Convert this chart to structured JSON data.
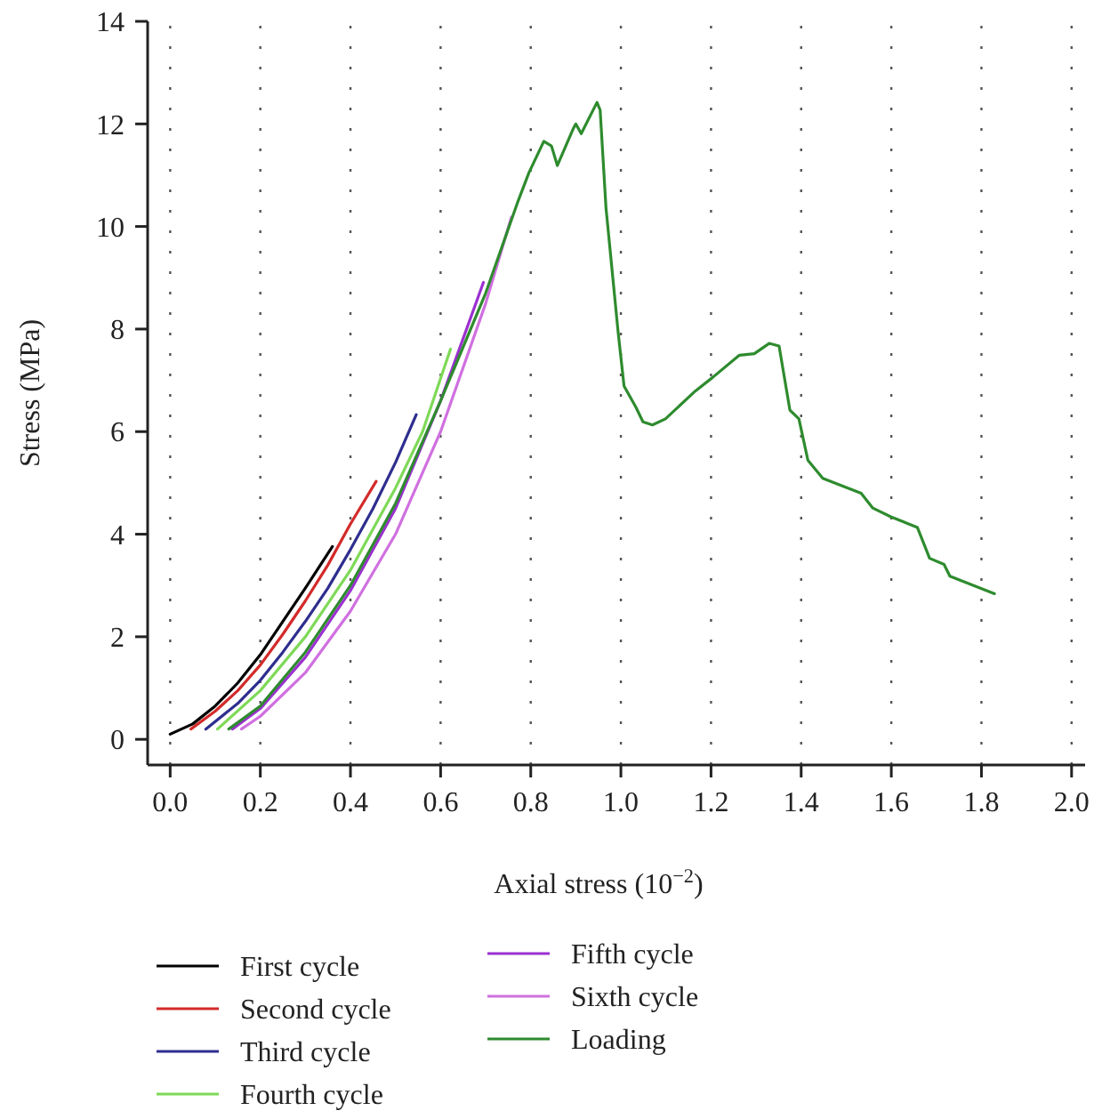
{
  "chart_data": {
    "type": "line",
    "xlabel": "Axial stress (10$^{−2}$)",
    "ylabel": "Stress (MPa)",
    "xlim": [
      -0.05,
      2.03
    ],
    "ylim": [
      -0.5,
      14
    ],
    "xticks": [
      {
        "value": 0,
        "label": "0.0"
      },
      0.2,
      0.4,
      0.6,
      0.8,
      {
        "value": 1,
        "label": "1.0"
      },
      1.2,
      1.4,
      1.6,
      1.8,
      {
        "value": 2,
        "label": "2.0"
      }
    ],
    "yticks": [
      0,
      2,
      4,
      6,
      8,
      10,
      12,
      14
    ],
    "grid": "x",
    "legend": "bottom",
    "marker": "none",
    "line_style": "solid",
    "series": [
      {
        "name": "First cycle",
        "color": "#000000",
        "x": [
          0.0,
          0.05,
          0.1,
          0.15,
          0.2,
          0.25,
          0.3,
          0.36
        ],
        "values": [
          0.1,
          0.3,
          0.65,
          1.1,
          1.65,
          2.3,
          2.95,
          3.76
        ]
      },
      {
        "name": "Second cycle",
        "color": "#d42a2a",
        "x": [
          0.046,
          0.1,
          0.15,
          0.2,
          0.25,
          0.3,
          0.35,
          0.4,
          0.457
        ],
        "values": [
          0.2,
          0.55,
          0.95,
          1.45,
          2.05,
          2.7,
          3.4,
          4.2,
          5.03
        ]
      },
      {
        "name": "Third cycle",
        "color": "#2e2e8f",
        "x": [
          0.079,
          0.15,
          0.2,
          0.25,
          0.3,
          0.35,
          0.4,
          0.45,
          0.5,
          0.546
        ],
        "values": [
          0.2,
          0.7,
          1.15,
          1.7,
          2.3,
          2.95,
          3.7,
          4.5,
          5.4,
          6.33
        ]
      },
      {
        "name": "Fourth cycle",
        "color": "#7ed957",
        "x": [
          0.105,
          0.2,
          0.3,
          0.4,
          0.5,
          0.56,
          0.622
        ],
        "values": [
          0.2,
          0.95,
          2.0,
          3.3,
          4.9,
          6.0,
          7.61
        ]
      },
      {
        "name": "Fifth cycle",
        "color": "#9b30d0",
        "x": [
          0.138,
          0.2,
          0.3,
          0.4,
          0.5,
          0.6,
          0.695
        ],
        "values": [
          0.2,
          0.6,
          1.6,
          2.9,
          4.5,
          6.6,
          8.91
        ]
      },
      {
        "name": "Sixth cycle",
        "color": "#d070e0",
        "x": [
          0.158,
          0.2,
          0.3,
          0.4,
          0.5,
          0.6,
          0.7,
          0.757
        ],
        "values": [
          0.2,
          0.45,
          1.3,
          2.5,
          4.0,
          6.0,
          8.5,
          10.18
        ]
      },
      {
        "name": "Loading",
        "color": "#2e8b2e",
        "x": [
          0.13,
          0.2,
          0.3,
          0.4,
          0.5,
          0.6,
          0.7,
          0.77,
          0.796,
          0.829,
          0.846,
          0.859,
          0.895,
          0.9,
          0.912,
          0.947,
          0.954,
          0.967,
          0.994,
          1.007,
          1.033,
          1.049,
          1.07,
          1.099,
          1.165,
          1.204,
          1.263,
          1.296,
          1.329,
          1.351,
          1.375,
          1.395,
          1.415,
          1.448,
          1.533,
          1.559,
          1.599,
          1.658,
          1.685,
          1.717,
          1.73,
          1.829
        ],
        "values": [
          0.2,
          0.65,
          1.7,
          3.0,
          4.6,
          6.6,
          8.7,
          10.45,
          11.05,
          11.66,
          11.57,
          11.19,
          11.92,
          12.0,
          11.81,
          12.42,
          12.27,
          10.36,
          7.93,
          6.89,
          6.48,
          6.19,
          6.13,
          6.25,
          6.79,
          7.06,
          7.49,
          7.52,
          7.72,
          7.67,
          6.42,
          6.25,
          5.44,
          5.09,
          4.8,
          4.51,
          4.34,
          4.13,
          3.53,
          3.41,
          3.18,
          2.84
        ]
      }
    ]
  }
}
